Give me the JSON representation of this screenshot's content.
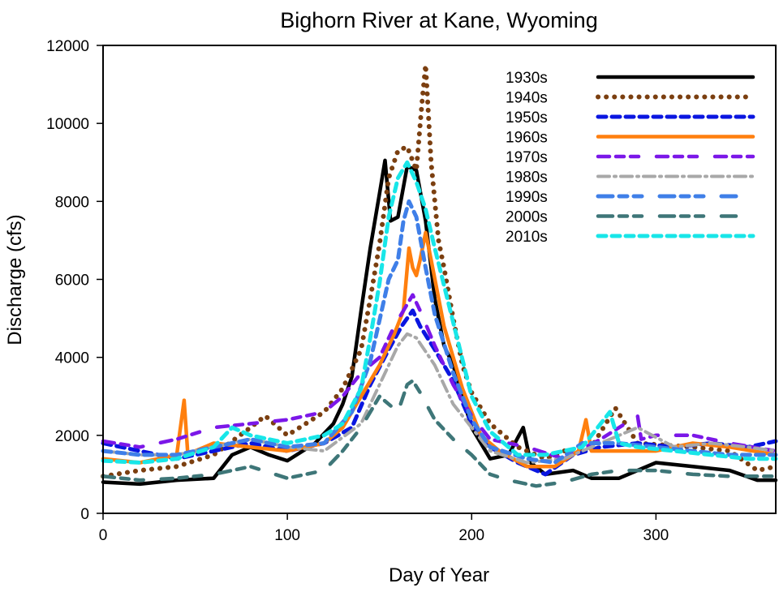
{
  "chart_data": {
    "type": "line",
    "title": "Bighorn River at Kane, Wyoming",
    "xlabel": "Day of Year",
    "ylabel": "Discharge (cfs)",
    "xlim": [
      0,
      365
    ],
    "ylim": [
      0,
      12000
    ],
    "xticks": [
      0,
      100,
      200,
      300
    ],
    "yticks": [
      0,
      2000,
      4000,
      6000,
      8000,
      10000,
      12000
    ],
    "grid": false,
    "legend_position": "top-right",
    "series": [
      {
        "name": "1930s",
        "color": "#000000",
        "style": "solid",
        "x": [
          0,
          20,
          40,
          60,
          70,
          80,
          90,
          100,
          115,
          125,
          130,
          135,
          140,
          145,
          150,
          153,
          156,
          160,
          165,
          170,
          175,
          180,
          185,
          190,
          195,
          200,
          210,
          220,
          228,
          232,
          240,
          255,
          265,
          280,
          300,
          320,
          340,
          355,
          365
        ],
        "y": [
          800,
          750,
          850,
          900,
          1500,
          1700,
          1500,
          1350,
          1800,
          2300,
          2800,
          3500,
          5200,
          6800,
          8200,
          9050,
          7500,
          7600,
          8900,
          8800,
          7500,
          5500,
          4300,
          3800,
          3000,
          2200,
          1400,
          1500,
          2200,
          1300,
          1000,
          1100,
          900,
          900,
          1300,
          1200,
          1100,
          850,
          850
        ]
      },
      {
        "name": "1940s",
        "color": "#7B3F10",
        "style": "dotted",
        "x": [
          0,
          20,
          40,
          60,
          80,
          88,
          100,
          120,
          130,
          140,
          145,
          150,
          155,
          160,
          165,
          170,
          173,
          175,
          178,
          182,
          185,
          190,
          195,
          200,
          210,
          225,
          240,
          250,
          265,
          278,
          290,
          320,
          340,
          355,
          365
        ],
        "y": [
          950,
          1100,
          1200,
          1500,
          2200,
          2500,
          2000,
          2600,
          3200,
          4200,
          5500,
          6900,
          8600,
          9300,
          9400,
          8800,
          10500,
          11500,
          9000,
          7000,
          6300,
          5000,
          3800,
          3100,
          2300,
          1700,
          1400,
          1600,
          1700,
          2700,
          1800,
          1700,
          1600,
          1100,
          1200
        ]
      },
      {
        "name": "1950s",
        "color": "#0A16E0",
        "style": "dashed",
        "x": [
          0,
          20,
          40,
          60,
          80,
          100,
          120,
          135,
          145,
          155,
          162,
          168,
          172,
          180,
          190,
          200,
          210,
          225,
          240,
          255,
          270,
          290,
          310,
          330,
          350,
          365
        ],
        "y": [
          1800,
          1600,
          1400,
          1600,
          1800,
          1600,
          1800,
          2200,
          3300,
          4200,
          4800,
          5200,
          4800,
          4200,
          3400,
          2300,
          1700,
          1300,
          1000,
          1500,
          1700,
          1800,
          1700,
          1800,
          1700,
          1850
        ]
      },
      {
        "name": "1960s",
        "color": "#FF7F0E",
        "style": "solid",
        "x": [
          0,
          20,
          40,
          44,
          46,
          50,
          60,
          80,
          100,
          120,
          130,
          140,
          150,
          158,
          163,
          166,
          168,
          170,
          172,
          175,
          178,
          185,
          195,
          205,
          215,
          230,
          245,
          258,
          262,
          265,
          280,
          300,
          320,
          340,
          365
        ],
        "y": [
          1400,
          1300,
          1500,
          2900,
          1500,
          1600,
          1800,
          1700,
          1600,
          1800,
          2200,
          3000,
          3800,
          4600,
          5200,
          6800,
          6300,
          6100,
          6500,
          7200,
          6500,
          4800,
          3200,
          2000,
          1600,
          1200,
          1200,
          1600,
          2400,
          1600,
          1600,
          1600,
          1800,
          1700,
          1500
        ]
      },
      {
        "name": "1970s",
        "color": "#7B17E8",
        "style": "longdash",
        "x": [
          0,
          20,
          40,
          60,
          80,
          100,
          120,
          130,
          140,
          150,
          158,
          163,
          168,
          172,
          180,
          190,
          200,
          210,
          230,
          250,
          270,
          290,
          292,
          300,
          320,
          340,
          365
        ],
        "y": [
          1850,
          1700,
          1900,
          2200,
          2300,
          2400,
          2600,
          3000,
          3600,
          4000,
          4800,
          5200,
          5600,
          5200,
          4300,
          3300,
          2500,
          1900,
          1700,
          1400,
          1900,
          2500,
          1900,
          2000,
          2000,
          1800,
          1600
        ]
      },
      {
        "name": "1980s",
        "color": "#A8A8A8",
        "style": "dashdot",
        "x": [
          0,
          20,
          40,
          60,
          80,
          100,
          120,
          140,
          150,
          160,
          165,
          170,
          180,
          190,
          200,
          210,
          230,
          250,
          270,
          290,
          310,
          330,
          350,
          365
        ],
        "y": [
          1600,
          1500,
          1500,
          1700,
          1900,
          1700,
          1600,
          2300,
          3300,
          4300,
          4600,
          4500,
          3800,
          2800,
          2200,
          1600,
          1300,
          1400,
          1800,
          2200,
          1700,
          1800,
          1700,
          1600
        ]
      },
      {
        "name": "1990s",
        "color": "#3F7FE8",
        "style": "dashed",
        "x": [
          0,
          20,
          40,
          60,
          80,
          100,
          120,
          135,
          145,
          155,
          160,
          163,
          166,
          170,
          175,
          180,
          190,
          200,
          210,
          230,
          245,
          260,
          280,
          300,
          320,
          340,
          365
        ],
        "y": [
          1600,
          1500,
          1500,
          1700,
          1900,
          1700,
          1800,
          2600,
          3900,
          6000,
          6500,
          7500,
          8000,
          7600,
          6300,
          5100,
          3600,
          2400,
          1700,
          1400,
          1300,
          1800,
          1800,
          1700,
          1600,
          1500,
          1500
        ]
      },
      {
        "name": "2000s",
        "color": "#3E7678",
        "style": "longdash",
        "x": [
          0,
          20,
          40,
          60,
          80,
          100,
          120,
          130,
          140,
          150,
          160,
          165,
          168,
          172,
          180,
          190,
          200,
          210,
          220,
          235,
          250,
          265,
          280,
          300,
          320,
          340,
          365
        ],
        "y": [
          950,
          850,
          900,
          1000,
          1200,
          900,
          1100,
          1600,
          2200,
          3000,
          2600,
          3300,
          3400,
          3100,
          2400,
          1900,
          1500,
          1000,
          850,
          700,
          800,
          1000,
          1100,
          1100,
          1000,
          950,
          950
        ]
      },
      {
        "name": "2010s",
        "color": "#18E6E8",
        "style": "dashed",
        "x": [
          0,
          20,
          40,
          60,
          70,
          80,
          100,
          120,
          130,
          140,
          145,
          150,
          155,
          160,
          165,
          170,
          175,
          180,
          190,
          200,
          210,
          225,
          240,
          260,
          275,
          280,
          290,
          310,
          330,
          350,
          365
        ],
        "y": [
          1350,
          1300,
          1400,
          1700,
          2200,
          2000,
          1800,
          2000,
          2300,
          3200,
          4500,
          5900,
          7600,
          8600,
          9000,
          8500,
          7800,
          6800,
          4900,
          3000,
          2100,
          1500,
          1500,
          1700,
          2600,
          1800,
          1700,
          1600,
          1500,
          1400,
          1400
        ]
      }
    ]
  }
}
